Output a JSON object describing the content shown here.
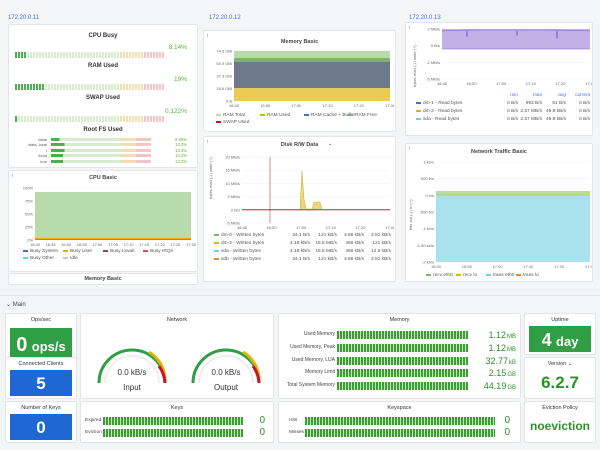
{
  "hosts": {
    "h1": "172.20.0.11",
    "h2": "172.20.0.12",
    "h3": "172.20.0.13"
  },
  "p1": {
    "cpu_busy": {
      "title": "CPU Busy",
      "value": "8.14%",
      "fraction": 0.0814
    },
    "ram_used": {
      "title": "RAM Used",
      "value": "19%",
      "fraction": 0.19
    },
    "swap_used": {
      "title": "SWAP Used",
      "value": "0.122%",
      "fraction": 0.00122
    },
    "rootfs": {
      "title": "Root FS Used",
      "rows": [
        {
          "name": "/data",
          "value": "8.68%"
        },
        {
          "name": "/data_local",
          "value": "13.3%"
        },
        {
          "name": "/",
          "value": "13.3%"
        },
        {
          "name": "/boot",
          "value": "12.2%"
        },
        {
          "name": "/run",
          "value": "12.2%"
        }
      ]
    },
    "cpu_basic": {
      "title": "CPU Basic",
      "yticks": [
        "100%",
        "75%",
        "50%",
        "25%",
        "0%"
      ],
      "xticks": [
        "16:40",
        "16:45",
        "16:50",
        "16:55",
        "17:00",
        "17:05",
        "17:10",
        "17:15",
        "17:20",
        "17:25",
        "17:30"
      ],
      "legend": [
        {
          "name": "Busy System",
          "color": "#3d71d9"
        },
        {
          "name": "Busy User",
          "color": "#e0b400"
        },
        {
          "name": "Busy Iowait",
          "color": "#8f3bb8"
        },
        {
          "name": "Busy IRQs",
          "color": "#e24d42"
        },
        {
          "name": "Busy Other",
          "color": "#6ed0e0"
        },
        {
          "name": "Idle",
          "color": "#b7dbab"
        }
      ]
    },
    "memory_basic_title": "Memory Basic"
  },
  "p2": {
    "memory_basic": {
      "title": "Memory Basic",
      "yticks": [
        "74.5 GiB",
        "55.9 GiB",
        "37.3 GiB",
        "18.6 GiB",
        "0 B"
      ],
      "xticks": [
        "16:40",
        "16:50",
        "17:00",
        "17:10",
        "17:20",
        "17:30"
      ],
      "legend": [
        {
          "name": "RAM Total",
          "color": "#b7dbab"
        },
        {
          "name": "RAM Used",
          "color": "#e0b400"
        },
        {
          "name": "RAM Cache + Buffer",
          "color": "#3d71d9"
        },
        {
          "name": "RAM Free",
          "color": "#7eb26d"
        },
        {
          "name": "SWAP Used",
          "color": "#c4162a"
        }
      ]
    },
    "disk": {
      "title": "Disk R/W Data",
      "yticks": [
        "20 MB/s",
        "15 MB/s",
        "10 MB/s",
        "5 MB/s",
        "0 B/s",
        "-5 MB/s"
      ],
      "ylabel": "bytes read (-) / write (+)",
      "xticks": [
        "16:40",
        "16:50",
        "17:00",
        "17:10",
        "17:20",
        "17:30"
      ],
      "headers": [
        "",
        "max",
        "avg",
        "current"
      ],
      "rows": [
        {
          "name": "dm-0 - Written bytes",
          "color": "#7eb26d",
          "a": "34.1 B/s",
          "b": "121 kB/s",
          "c": "3.86 kB/s",
          "d": "3.51 kB/s"
        },
        {
          "name": "dm-2 - Written bytes",
          "color": "#e0b400",
          "a": "4.18 kB/s",
          "b": "16.5 MB/s",
          "c": "466 kB/s",
          "d": "121 kB/s"
        },
        {
          "name": "sda - Written bytes",
          "color": "#6ed0e0",
          "a": "4.18 kB/s",
          "b": "16.5 MB/s",
          "c": "466 kB/s",
          "d": "12.6 kB/s"
        },
        {
          "name": "sdb - Written bytes",
          "color": "#ef843c",
          "a": "34.1 B/s",
          "b": "121 kB/s",
          "c": "3.86 kB/s",
          "d": "3.51 kB/s"
        }
      ]
    }
  },
  "p3": {
    "top": {
      "yticks": [
        "2 MB/s",
        "0 B/s",
        "-2 MB/s",
        "-5 MB/s"
      ],
      "ylabel": "bytes read (-) / write (+)",
      "xticks": [
        "16:40",
        "16:50",
        "17:00",
        "17:10",
        "17:20",
        "17:30"
      ],
      "headers": [
        "min",
        "max",
        "avg",
        "current"
      ],
      "rows": [
        {
          "name": "dm-1 - Read bytes",
          "color": "#3d71d9",
          "a": "0 B/s",
          "b": "993 B/s",
          "c": "51 B/s",
          "d": "0 B/s"
        },
        {
          "name": "dm-2 - Read bytes",
          "color": "#e0b400",
          "a": "0 B/s",
          "b": "2.57 MB/s",
          "c": "49.8 kB/s",
          "d": "0 B/s"
        },
        {
          "name": "sda - Read bytes",
          "color": "#6ed0e0",
          "a": "0 B/s",
          "b": "2.57 MB/s",
          "c": "49.8 kB/s",
          "d": "0 B/s"
        }
      ]
    },
    "net": {
      "title": "Network Traffic Basic",
      "yticks": [
        "1 kb/s",
        "500 b/s",
        "0 b/s",
        "-500 b/s",
        "-1 kb/s",
        "-1.50 kb/s",
        "-2 kb/s"
      ],
      "ylabel": "bits out (-) / in (+)",
      "xticks": [
        "16:40",
        "16:50",
        "17:00",
        "17:10",
        "17:20",
        "17:30"
      ],
      "legend": [
        {
          "name": "recv eth0",
          "color": "#7eb26d"
        },
        {
          "name": "recv lo",
          "color": "#e0b400"
        },
        {
          "name": "trans eth0",
          "color": "#6ed0e0"
        },
        {
          "name": "trans lo",
          "color": "#ef843c"
        }
      ]
    }
  },
  "section": {
    "label": "Main"
  },
  "redis": {
    "ops": {
      "title": "Ops/sec",
      "value": "0",
      "unit": "ops/s"
    },
    "clients": {
      "title": "Connected Clients",
      "value": "5"
    },
    "keys_count": {
      "title": "Number of Keys",
      "value": "0"
    },
    "network": {
      "title": "Network",
      "input_value": "0.0 kB/s",
      "input_label": "Input",
      "output_value": "0.0 kB/s",
      "output_label": "Output"
    },
    "keys": {
      "title": "Keys",
      "rows": [
        {
          "label": "Expired",
          "value": "0"
        },
        {
          "label": "Eviction",
          "value": "0"
        }
      ]
    },
    "memory": {
      "title": "Memory",
      "rows": [
        {
          "label": "Used Memory",
          "value": "1.12",
          "unit": "MB"
        },
        {
          "label": "Used Memory, Peak",
          "value": "1.12",
          "unit": "MB"
        },
        {
          "label": "Used Memory, LUA",
          "value": "32.77",
          "unit": "kB"
        },
        {
          "label": "Memory Limit",
          "value": "2.15",
          "unit": "GB"
        },
        {
          "label": "Total System Memory",
          "value": "44.19",
          "unit": "GB"
        }
      ]
    },
    "keyspace": {
      "title": "Keyspace",
      "rows": [
        {
          "label": "Hits",
          "value": "0"
        },
        {
          "label": "Misses",
          "value": "0"
        }
      ]
    },
    "uptime": {
      "title": "Uptime",
      "value": "4",
      "unit": "day"
    },
    "version": {
      "title": "Version",
      "value": "6.2.7"
    },
    "eviction": {
      "title": "Eviction Policy",
      "value": "noeviction"
    }
  }
}
